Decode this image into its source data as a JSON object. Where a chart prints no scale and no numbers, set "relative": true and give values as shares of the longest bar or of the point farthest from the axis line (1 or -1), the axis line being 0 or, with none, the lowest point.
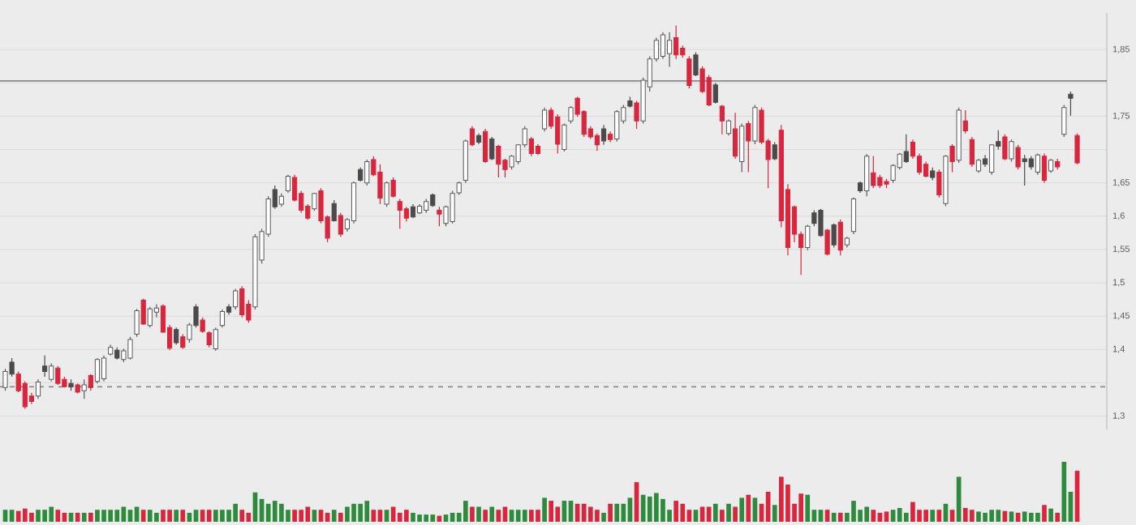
{
  "chart_data": [
    {
      "type": "candlestick",
      "categories": [
        null,
        null,
        null,
        null,
        null,
        null,
        null,
        null,
        null,
        null,
        null,
        null,
        null,
        null,
        null,
        null,
        null,
        null,
        null,
        null,
        null,
        null,
        null,
        null,
        null,
        null,
        null,
        null,
        null,
        null,
        null,
        null,
        null,
        null,
        null,
        null,
        null,
        null,
        null,
        null,
        null,
        null,
        null,
        null,
        null,
        null,
        null,
        null,
        null,
        null,
        null,
        null,
        null,
        null,
        null,
        null,
        null,
        null,
        null,
        null,
        null,
        null,
        null,
        null,
        null,
        null,
        null,
        null,
        null,
        null,
        null,
        null,
        null,
        null,
        null,
        null,
        null,
        null,
        null,
        null,
        null,
        null,
        null,
        null,
        null,
        null,
        null,
        null,
        null,
        null,
        null,
        null,
        null,
        null,
        null,
        null,
        null,
        null,
        null,
        null,
        null,
        null,
        null,
        null,
        null,
        null,
        null,
        null,
        null,
        null,
        null,
        null,
        null,
        null,
        null,
        null,
        null,
        null,
        null,
        null,
        null,
        null,
        null,
        null,
        null,
        null,
        null,
        null,
        null,
        null,
        null,
        null,
        null,
        null,
        null,
        null,
        null,
        null,
        null,
        null,
        null,
        null,
        null,
        null,
        null,
        null,
        null,
        null,
        null,
        null,
        null,
        null,
        null,
        null,
        null,
        null,
        null,
        null,
        null,
        null,
        null,
        null,
        null,
        null
      ],
      "ohlc": [
        [
          1.343,
          1.371,
          1.338,
          1.367
        ],
        [
          1.381,
          1.387,
          1.359,
          1.363
        ],
        [
          1.363,
          1.367,
          1.336,
          1.338
        ],
        [
          1.349,
          1.352,
          1.311,
          1.314
        ],
        [
          1.33,
          1.335,
          1.318,
          1.322
        ],
        [
          1.33,
          1.355,
          1.326,
          1.351
        ],
        [
          1.375,
          1.391,
          1.359,
          1.367
        ],
        [
          1.355,
          1.379,
          1.352,
          1.375
        ],
        [
          1.372,
          1.375,
          1.347,
          1.349
        ],
        [
          1.355,
          1.359,
          1.343,
          1.344
        ],
        [
          1.349,
          1.355,
          1.338,
          1.344
        ],
        [
          1.347,
          1.349,
          1.334,
          1.336
        ],
        [
          1.338,
          1.355,
          1.326,
          1.347
        ],
        [
          1.361,
          1.363,
          1.338,
          1.343
        ],
        [
          1.352,
          1.387,
          1.349,
          1.385
        ],
        [
          1.356,
          1.391,
          1.352,
          1.387
        ],
        [
          1.393,
          1.407,
          1.391,
          1.403
        ],
        [
          1.399,
          1.403,
          1.385,
          1.387
        ],
        [
          1.385,
          1.401,
          1.381,
          1.398
        ],
        [
          1.387,
          1.419,
          1.385,
          1.415
        ],
        [
          1.423,
          1.461,
          1.419,
          1.458
        ],
        [
          1.474,
          1.476,
          1.437,
          1.438
        ],
        [
          1.436,
          1.464,
          1.433,
          1.461
        ],
        [
          1.456,
          1.468,
          1.448,
          1.462
        ],
        [
          1.465,
          1.468,
          1.425,
          1.426
        ],
        [
          1.433,
          1.437,
          1.399,
          1.402
        ],
        [
          1.43,
          1.433,
          1.407,
          1.41
        ],
        [
          1.419,
          1.423,
          1.401,
          1.403
        ],
        [
          1.415,
          1.44,
          1.41,
          1.437
        ],
        [
          1.464,
          1.468,
          1.433,
          1.436
        ],
        [
          1.444,
          1.448,
          1.425,
          1.427
        ],
        [
          1.425,
          1.427,
          1.403,
          1.407
        ],
        [
          1.401,
          1.433,
          1.398,
          1.43
        ],
        [
          1.436,
          1.46,
          1.433,
          1.457
        ],
        [
          1.464,
          1.468,
          1.452,
          1.456
        ],
        [
          1.464,
          1.491,
          1.46,
          1.488
        ],
        [
          1.491,
          1.495,
          1.448,
          1.452
        ],
        [
          1.468,
          1.474,
          1.44,
          1.444
        ],
        [
          1.464,
          1.573,
          1.46,
          1.569
        ],
        [
          1.534,
          1.581,
          1.529,
          1.577
        ],
        [
          1.573,
          1.63,
          1.569,
          1.626
        ],
        [
          1.64,
          1.646,
          1.611,
          1.614
        ],
        [
          1.618,
          1.634,
          1.614,
          1.63
        ],
        [
          1.638,
          1.662,
          1.635,
          1.66
        ],
        [
          1.658,
          1.662,
          1.622,
          1.624
        ],
        [
          1.634,
          1.638,
          1.605,
          1.609
        ],
        [
          1.615,
          1.618,
          1.595,
          1.597
        ],
        [
          1.611,
          1.635,
          1.608,
          1.634
        ],
        [
          1.638,
          1.642,
          1.589,
          1.593
        ],
        [
          1.599,
          1.601,
          1.561,
          1.567
        ],
        [
          1.619,
          1.624,
          1.592,
          1.593
        ],
        [
          1.601,
          1.605,
          1.569,
          1.573
        ],
        [
          1.581,
          1.597,
          1.577,
          1.595
        ],
        [
          1.593,
          1.652,
          1.589,
          1.65
        ],
        [
          1.67,
          1.673,
          1.652,
          1.654
        ],
        [
          1.65,
          1.685,
          1.646,
          1.682
        ],
        [
          1.685,
          1.69,
          1.66,
          1.662
        ],
        [
          1.666,
          1.678,
          1.618,
          1.627
        ],
        [
          1.618,
          1.652,
          1.614,
          1.65
        ],
        [
          1.654,
          1.658,
          1.628,
          1.63
        ],
        [
          1.622,
          1.626,
          1.581,
          1.609
        ],
        [
          1.611,
          1.614,
          1.592,
          1.597
        ],
        [
          1.614,
          1.618,
          1.597,
          1.599
        ],
        [
          1.605,
          1.618,
          1.603,
          1.615
        ],
        [
          1.609,
          1.626,
          1.605,
          1.622
        ],
        [
          1.632,
          1.634,
          1.614,
          1.616
        ],
        [
          1.609,
          1.614,
          1.585,
          1.603
        ],
        [
          1.589,
          1.616,
          1.585,
          1.614
        ],
        [
          1.592,
          1.638,
          1.589,
          1.634
        ],
        [
          1.635,
          1.652,
          1.632,
          1.65
        ],
        [
          1.654,
          1.715,
          1.65,
          1.713
        ],
        [
          1.731,
          1.735,
          1.705,
          1.707
        ],
        [
          1.721,
          1.724,
          1.708,
          1.711
        ],
        [
          1.727,
          1.731,
          1.68,
          1.682
        ],
        [
          1.716,
          1.719,
          1.684,
          1.686
        ],
        [
          1.705,
          1.707,
          1.658,
          1.678
        ],
        [
          1.684,
          1.686,
          1.658,
          1.67
        ],
        [
          1.674,
          1.692,
          1.67,
          1.69
        ],
        [
          1.682,
          1.708,
          1.678,
          1.707
        ],
        [
          1.707,
          1.735,
          1.703,
          1.731
        ],
        [
          1.716,
          1.719,
          1.69,
          1.694
        ],
        [
          1.705,
          1.708,
          1.692,
          1.694
        ],
        [
          1.731,
          1.763,
          1.727,
          1.759
        ],
        [
          1.759,
          1.763,
          1.731,
          1.735
        ],
        [
          1.749,
          1.753,
          1.694,
          1.708
        ],
        [
          1.7,
          1.739,
          1.697,
          1.737
        ],
        [
          1.743,
          1.765,
          1.739,
          1.763
        ],
        [
          1.777,
          1.779,
          1.749,
          1.753
        ],
        [
          1.757,
          1.759,
          1.719,
          1.723
        ],
        [
          1.731,
          1.735,
          1.716,
          1.719
        ],
        [
          1.721,
          1.724,
          1.698,
          1.707
        ],
        [
          1.731,
          1.737,
          1.707,
          1.713
        ],
        [
          1.723,
          1.727,
          1.711,
          1.715
        ],
        [
          1.716,
          1.759,
          1.712,
          1.757
        ],
        [
          1.743,
          1.767,
          1.739,
          1.763
        ],
        [
          1.773,
          1.779,
          1.763,
          1.765
        ],
        [
          1.77,
          1.773,
          1.731,
          1.743
        ],
        [
          1.743,
          1.808,
          1.739,
          1.804
        ],
        [
          1.794,
          1.84,
          1.787,
          1.836
        ],
        [
          1.836,
          1.868,
          1.832,
          1.864
        ],
        [
          1.84,
          1.876,
          1.836,
          1.872
        ],
        [
          1.844,
          1.876,
          1.824,
          1.864
        ],
        [
          1.868,
          1.886,
          1.836,
          1.842
        ],
        [
          1.852,
          1.856,
          1.838,
          1.842
        ],
        [
          1.836,
          1.84,
          1.792,
          1.796
        ],
        [
          1.842,
          1.846,
          1.81,
          1.812
        ],
        [
          1.821,
          1.825,
          1.785,
          1.787
        ],
        [
          1.808,
          1.812,
          1.765,
          1.767
        ],
        [
          1.797,
          1.8,
          1.769,
          1.771
        ],
        [
          1.765,
          1.767,
          1.723,
          1.743
        ],
        [
          1.724,
          1.745,
          1.721,
          1.743
        ],
        [
          1.731,
          1.755,
          1.686,
          1.69
        ],
        [
          1.682,
          1.739,
          1.666,
          1.735
        ],
        [
          1.739,
          1.743,
          1.666,
          1.713
        ],
        [
          1.713,
          1.767,
          1.708,
          1.763
        ],
        [
          1.759,
          1.763,
          1.708,
          1.711
        ],
        [
          1.713,
          1.716,
          1.642,
          1.685
        ],
        [
          1.707,
          1.711,
          1.684,
          1.686
        ],
        [
          1.729,
          1.737,
          1.583,
          1.593
        ],
        [
          1.64,
          1.648,
          1.541,
          1.553
        ],
        [
          1.614,
          1.616,
          1.561,
          1.573
        ],
        [
          1.573,
          1.577,
          1.512,
          1.553
        ],
        [
          1.553,
          1.587,
          1.549,
          1.585
        ],
        [
          1.605,
          1.609,
          1.585,
          1.589
        ],
        [
          1.609,
          1.611,
          1.569,
          1.571
        ],
        [
          1.579,
          1.581,
          1.541,
          1.543
        ],
        [
          1.587,
          1.589,
          1.553,
          1.557
        ],
        [
          1.591,
          1.595,
          1.541,
          1.549
        ],
        [
          1.557,
          1.569,
          1.553,
          1.567
        ],
        [
          1.577,
          1.628,
          1.573,
          1.626
        ],
        [
          1.65,
          1.652,
          1.635,
          1.638
        ],
        [
          1.638,
          1.693,
          1.63,
          1.69
        ],
        [
          1.665,
          1.69,
          1.642,
          1.646
        ],
        [
          1.658,
          1.662,
          1.642,
          1.646
        ],
        [
          1.652,
          1.656,
          1.642,
          1.648
        ],
        [
          1.654,
          1.678,
          1.65,
          1.676
        ],
        [
          1.673,
          1.695,
          1.67,
          1.693
        ],
        [
          1.697,
          1.723,
          1.68,
          1.682
        ],
        [
          1.711,
          1.715,
          1.686,
          1.69
        ],
        [
          1.69,
          1.694,
          1.662,
          1.666
        ],
        [
          1.678,
          1.682,
          1.658,
          1.66
        ],
        [
          1.668,
          1.673,
          1.654,
          1.658
        ],
        [
          1.666,
          1.67,
          1.628,
          1.632
        ],
        [
          1.619,
          1.692,
          1.615,
          1.69
        ],
        [
          1.705,
          1.708,
          1.666,
          1.682
        ],
        [
          1.684,
          1.763,
          1.68,
          1.759
        ],
        [
          1.743,
          1.759,
          1.724,
          1.728
        ],
        [
          1.715,
          1.719,
          1.674,
          1.678
        ],
        [
          1.668,
          1.686,
          1.665,
          1.684
        ],
        [
          1.686,
          1.692,
          1.674,
          1.678
        ],
        [
          1.666,
          1.708,
          1.662,
          1.707
        ],
        [
          1.712,
          1.729,
          1.7,
          1.705
        ],
        [
          1.719,
          1.723,
          1.684,
          1.686
        ],
        [
          1.686,
          1.715,
          1.682,
          1.712
        ],
        [
          1.703,
          1.707,
          1.67,
          1.674
        ],
        [
          1.686,
          1.692,
          1.646,
          1.682
        ],
        [
          1.686,
          1.69,
          1.67,
          1.674
        ],
        [
          1.666,
          1.694,
          1.662,
          1.692
        ],
        [
          1.69,
          1.694,
          1.65,
          1.654
        ],
        [
          1.668,
          1.686,
          1.665,
          1.684
        ],
        [
          1.682,
          1.686,
          1.67,
          1.674
        ],
        [
          1.723,
          1.767,
          1.719,
          1.763
        ],
        [
          1.783,
          1.787,
          1.751,
          1.777
        ],
        [
          1.721,
          1.724,
          1.678,
          1.68
        ]
      ],
      "colors": [
        "#ffffff",
        "#4a4a4a",
        "#d7263d",
        "#d7263d",
        "#d7263d",
        "#ffffff",
        "#4a4a4a",
        "#ffffff",
        "#d7263d",
        "#d7263d",
        "#4a4a4a",
        "#d7263d",
        "#ffffff",
        "#d7263d",
        "#ffffff",
        "#ffffff",
        "#ffffff",
        "#4a4a4a",
        "#ffffff",
        "#ffffff",
        "#ffffff",
        "#d7263d",
        "#ffffff",
        "#ffffff",
        "#d7263d",
        "#d7263d",
        "#4a4a4a",
        "#d7263d",
        "#ffffff",
        "#4a4a4a",
        "#d7263d",
        "#d7263d",
        "#ffffff",
        "#ffffff",
        "#4a4a4a",
        "#ffffff",
        "#d7263d",
        "#d7263d",
        "#ffffff",
        "#ffffff",
        "#ffffff",
        "#4a4a4a",
        "#ffffff",
        "#ffffff",
        "#d7263d",
        "#d7263d",
        "#d7263d",
        "#ffffff",
        "#d7263d",
        "#d7263d",
        "#4a4a4a",
        "#d7263d",
        "#ffffff",
        "#ffffff",
        "#4a4a4a",
        "#ffffff",
        "#d7263d",
        "#d7263d",
        "#ffffff",
        "#d7263d",
        "#d7263d",
        "#d7263d",
        "#4a4a4a",
        "#ffffff",
        "#ffffff",
        "#4a4a4a",
        "#d7263d",
        "#ffffff",
        "#ffffff",
        "#ffffff",
        "#ffffff",
        "#d7263d",
        "#4a4a4a",
        "#d7263d",
        "#4a4a4a",
        "#d7263d",
        "#d7263d",
        "#ffffff",
        "#ffffff",
        "#ffffff",
        "#d7263d",
        "#d7263d",
        "#ffffff",
        "#d7263d",
        "#d7263d",
        "#ffffff",
        "#ffffff",
        "#d7263d",
        "#d7263d",
        "#d7263d",
        "#d7263d",
        "#4a4a4a",
        "#d7263d",
        "#ffffff",
        "#ffffff",
        "#4a4a4a",
        "#d7263d",
        "#ffffff",
        "#ffffff",
        "#ffffff",
        "#ffffff",
        "#ffffff",
        "#d7263d",
        "#d7263d",
        "#d7263d",
        "#4a4a4a",
        "#d7263d",
        "#d7263d",
        "#4a4a4a",
        "#d7263d",
        "#ffffff",
        "#d7263d",
        "#ffffff",
        "#d7263d",
        "#ffffff",
        "#d7263d",
        "#d7263d",
        "#4a4a4a",
        "#d7263d",
        "#d7263d",
        "#d7263d",
        "#d7263d",
        "#ffffff",
        "#4a4a4a",
        "#4a4a4a",
        "#d7263d",
        "#4a4a4a",
        "#d7263d",
        "#ffffff",
        "#ffffff",
        "#4a4a4a",
        "#ffffff",
        "#d7263d",
        "#d7263d",
        "#d7263d",
        "#ffffff",
        "#ffffff",
        "#4a4a4a",
        "#d7263d",
        "#d7263d",
        "#d7263d",
        "#4a4a4a",
        "#d7263d",
        "#ffffff",
        "#d7263d",
        "#ffffff",
        "#d7263d",
        "#d7263d",
        "#ffffff",
        "#4a4a4a",
        "#ffffff",
        "#4a4a4a",
        "#d7263d",
        "#ffffff",
        "#d7263d",
        "#4a4a4a",
        "#4a4a4a",
        "#ffffff",
        "#d7263d",
        "#ffffff",
        "#d7263d",
        "#ffffff",
        "#4a4a4a",
        "#d7263d"
      ],
      "ylim": [
        1.28,
        1.905
      ],
      "yticks": [
        {
          "value": 1.3,
          "label": "1,3"
        },
        {
          "value": 1.35,
          "label": null
        },
        {
          "value": 1.4,
          "label": "1,4"
        },
        {
          "value": 1.45,
          "label": "1,45"
        },
        {
          "value": 1.5,
          "label": "1,5"
        },
        {
          "value": 1.55,
          "label": "1,55"
        },
        {
          "value": 1.6,
          "label": "1,6"
        },
        {
          "value": 1.65,
          "label": "1,65"
        },
        {
          "value": 1.7,
          "label": null
        },
        {
          "value": 1.75,
          "label": "1,75"
        },
        {
          "value": 1.8,
          "label": null
        },
        {
          "value": 1.85,
          "label": "1,85"
        }
      ],
      "grid": "y",
      "ref_lines": [
        {
          "axis": "y",
          "value": 1.803,
          "color": "#8a8a8a"
        },
        {
          "axis": "y",
          "value": 1.344,
          "color": "#8a8a8a",
          "line_style": "dashed"
        }
      ]
    },
    {
      "type": "bar",
      "relative": true,
      "categories": [
        null,
        null,
        null,
        null,
        null,
        null,
        null,
        null,
        null,
        null,
        null,
        null,
        null,
        null,
        null,
        null,
        null,
        null,
        null,
        null,
        null,
        null,
        null,
        null,
        null,
        null,
        null,
        null,
        null,
        null,
        null,
        null,
        null,
        null,
        null,
        null,
        null,
        null,
        null,
        null,
        null,
        null,
        null,
        null,
        null,
        null,
        null,
        null,
        null,
        null,
        null,
        null,
        null,
        null,
        null,
        null,
        null,
        null,
        null,
        null,
        null,
        null,
        null,
        null,
        null,
        null,
        null,
        null,
        null,
        null,
        null,
        null,
        null,
        null,
        null,
        null,
        null,
        null,
        null,
        null,
        null,
        null,
        null,
        null,
        null,
        null,
        null,
        null,
        null,
        null,
        null,
        null,
        null,
        null,
        null,
        null,
        null,
        null,
        null,
        null,
        null,
        null,
        null,
        null,
        null,
        null,
        null,
        null,
        null,
        null,
        null,
        null,
        null,
        null,
        null,
        null,
        null,
        null,
        null,
        null,
        null,
        null,
        null,
        null,
        null,
        null,
        null,
        null,
        null,
        null,
        null,
        null,
        null,
        null,
        null,
        null,
        null,
        null,
        null,
        null,
        null,
        null,
        null,
        null,
        null,
        null,
        null,
        null,
        null,
        null,
        null,
        null,
        null,
        null,
        null,
        null,
        null,
        null,
        null,
        null,
        null,
        null,
        null,
        null
      ],
      "values": [
        0.2,
        0.2,
        0.18,
        0.22,
        0.15,
        0.2,
        0.2,
        0.25,
        0.2,
        0.15,
        0.15,
        0.15,
        0.15,
        0.15,
        0.2,
        0.2,
        0.2,
        0.2,
        0.25,
        0.2,
        0.25,
        0.2,
        0.2,
        0.15,
        0.2,
        0.2,
        0.2,
        0.2,
        0.15,
        0.2,
        0.2,
        0.2,
        0.2,
        0.2,
        0.2,
        0.3,
        0.2,
        0.15,
        0.49,
        0.38,
        0.3,
        0.35,
        0.3,
        0.2,
        0.2,
        0.2,
        0.25,
        0.2,
        0.2,
        0.15,
        0.2,
        0.15,
        0.25,
        0.3,
        0.3,
        0.35,
        0.2,
        0.2,
        0.2,
        0.25,
        0.15,
        0.2,
        0.15,
        0.12,
        0.12,
        0.12,
        0.1,
        0.12,
        0.15,
        0.15,
        0.35,
        0.25,
        0.25,
        0.2,
        0.25,
        0.2,
        0.25,
        0.2,
        0.2,
        0.2,
        0.2,
        0.2,
        0.4,
        0.35,
        0.25,
        0.35,
        0.35,
        0.3,
        0.3,
        0.25,
        0.2,
        0.15,
        0.3,
        0.3,
        0.3,
        0.4,
        0.66,
        0.45,
        0.42,
        0.48,
        0.38,
        0.2,
        0.35,
        0.3,
        0.2,
        0.2,
        0.25,
        0.25,
        0.3,
        0.2,
        0.3,
        0.25,
        0.4,
        0.45,
        0.4,
        0.3,
        0.5,
        0.28,
        0.75,
        0.62,
        0.3,
        0.47,
        0.45,
        0.2,
        0.2,
        0.2,
        0.15,
        0.15,
        0.15,
        0.35,
        0.2,
        0.25,
        0.2,
        0.15,
        0.17,
        0.2,
        0.23,
        0.15,
        0.33,
        0.2,
        0.2,
        0.2,
        0.2,
        0.3,
        0.2,
        0.75,
        0.23,
        0.2,
        0.17,
        0.15,
        0.2,
        0.2,
        0.18,
        0.17,
        0.15,
        0.17,
        0.15,
        0.15,
        0.28,
        0.22,
        0.15,
        1.0,
        0.5,
        0.85
      ],
      "colors": [
        "#2e8b3e",
        "#2e8b3e",
        "#d7263d",
        "#d7263d",
        "#d7263d",
        "#2e8b3e",
        "#2e8b3e",
        "#2e8b3e",
        "#d7263d",
        "#d7263d",
        "#2e8b3e",
        "#d7263d",
        "#2e8b3e",
        "#d7263d",
        "#2e8b3e",
        "#2e8b3e",
        "#2e8b3e",
        "#2e8b3e",
        "#2e8b3e",
        "#2e8b3e",
        "#2e8b3e",
        "#d7263d",
        "#2e8b3e",
        "#2e8b3e",
        "#d7263d",
        "#d7263d",
        "#2e8b3e",
        "#d7263d",
        "#2e8b3e",
        "#2e8b3e",
        "#d7263d",
        "#d7263d",
        "#2e8b3e",
        "#2e8b3e",
        "#2e8b3e",
        "#2e8b3e",
        "#d7263d",
        "#d7263d",
        "#2e8b3e",
        "#2e8b3e",
        "#2e8b3e",
        "#2e8b3e",
        "#2e8b3e",
        "#2e8b3e",
        "#d7263d",
        "#d7263d",
        "#d7263d",
        "#2e8b3e",
        "#d7263d",
        "#d7263d",
        "#2e8b3e",
        "#d7263d",
        "#2e8b3e",
        "#2e8b3e",
        "#2e8b3e",
        "#2e8b3e",
        "#d7263d",
        "#d7263d",
        "#2e8b3e",
        "#d7263d",
        "#d7263d",
        "#d7263d",
        "#2e8b3e",
        "#2e8b3e",
        "#2e8b3e",
        "#2e8b3e",
        "#d7263d",
        "#2e8b3e",
        "#2e8b3e",
        "#2e8b3e",
        "#2e8b3e",
        "#d7263d",
        "#2e8b3e",
        "#d7263d",
        "#2e8b3e",
        "#d7263d",
        "#d7263d",
        "#2e8b3e",
        "#2e8b3e",
        "#2e8b3e",
        "#d7263d",
        "#d7263d",
        "#2e8b3e",
        "#d7263d",
        "#d7263d",
        "#2e8b3e",
        "#2e8b3e",
        "#d7263d",
        "#d7263d",
        "#d7263d",
        "#d7263d",
        "#2e8b3e",
        "#d7263d",
        "#2e8b3e",
        "#2e8b3e",
        "#2e8b3e",
        "#d7263d",
        "#2e8b3e",
        "#2e8b3e",
        "#2e8b3e",
        "#2e8b3e",
        "#2e8b3e",
        "#d7263d",
        "#d7263d",
        "#d7263d",
        "#2e8b3e",
        "#d7263d",
        "#d7263d",
        "#2e8b3e",
        "#d7263d",
        "#2e8b3e",
        "#d7263d",
        "#2e8b3e",
        "#d7263d",
        "#2e8b3e",
        "#d7263d",
        "#d7263d",
        "#2e8b3e",
        "#d7263d",
        "#d7263d",
        "#d7263d",
        "#d7263d",
        "#2e8b3e",
        "#2e8b3e",
        "#2e8b3e",
        "#d7263d",
        "#2e8b3e",
        "#d7263d",
        "#2e8b3e",
        "#2e8b3e",
        "#2e8b3e",
        "#2e8b3e",
        "#d7263d",
        "#d7263d",
        "#d7263d",
        "#2e8b3e",
        "#2e8b3e",
        "#2e8b3e",
        "#d7263d",
        "#d7263d",
        "#d7263d",
        "#2e8b3e",
        "#d7263d",
        "#2e8b3e",
        "#d7263d",
        "#2e8b3e",
        "#d7263d",
        "#d7263d",
        "#2e8b3e",
        "#2e8b3e",
        "#2e8b3e",
        "#2e8b3e",
        "#d7263d",
        "#2e8b3e",
        "#d7263d",
        "#2e8b3e",
        "#2e8b3e",
        "#2e8b3e",
        "#d7263d",
        "#2e8b3e",
        "#d7263d",
        "#2e8b3e",
        "#2e8b3e",
        "#d7263d"
      ]
    }
  ]
}
